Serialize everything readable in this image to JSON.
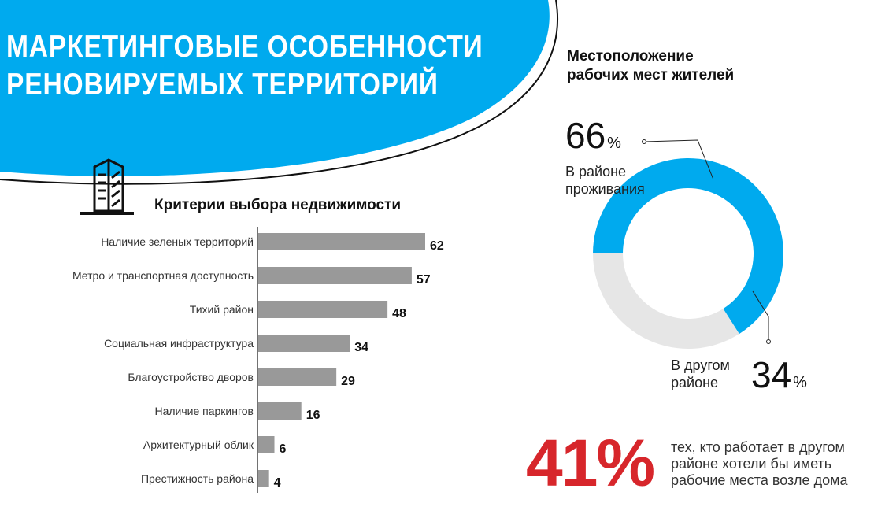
{
  "header": {
    "title_lines": [
      "МАРКЕТИНГОВЫЕ ОСОБЕННОСТИ",
      "РЕНОВИРУЕМЫХ ТЕРРИТОРИЙ"
    ],
    "accent_color": "#00aaee"
  },
  "criteria": {
    "icon": "building-icon",
    "title": "Критерии выбора недвижимости"
  },
  "workplace": {
    "title_lines": [
      "Местоположение",
      "рабочих мест жителей"
    ]
  },
  "highlight": {
    "value": "41%",
    "caption_lines": [
      "тех, кто работает в другом",
      "районе хотели бы иметь",
      "рабочие места возле дома"
    ],
    "color": "#d7262b"
  },
  "chart_data": [
    {
      "type": "bar",
      "orientation": "horizontal",
      "title": "Критерии выбора недвижимости",
      "categories": [
        "Наличие зеленых территорий",
        "Метро и транспортная доступность",
        "Тихий район",
        "Социальная инфраструктура",
        "Благоустройство дворов",
        "Наличие паркингов",
        "Архитектурный облик",
        "Престижность района"
      ],
      "values": [
        62,
        57,
        48,
        34,
        29,
        16,
        6,
        4
      ],
      "bar_color": "#999999",
      "xlim": [
        0,
        62
      ]
    },
    {
      "type": "pie",
      "variant": "donut",
      "title": "Местоположение рабочих мест жителей",
      "slices": [
        {
          "name_lines": [
            "В районе",
            "проживания"
          ],
          "value": 66,
          "unit": "%",
          "color": "#00aaee"
        },
        {
          "name_lines": [
            "В другом",
            "районе"
          ],
          "value": 34,
          "unit": "%",
          "color": "#e6e6e6"
        }
      ]
    }
  ]
}
